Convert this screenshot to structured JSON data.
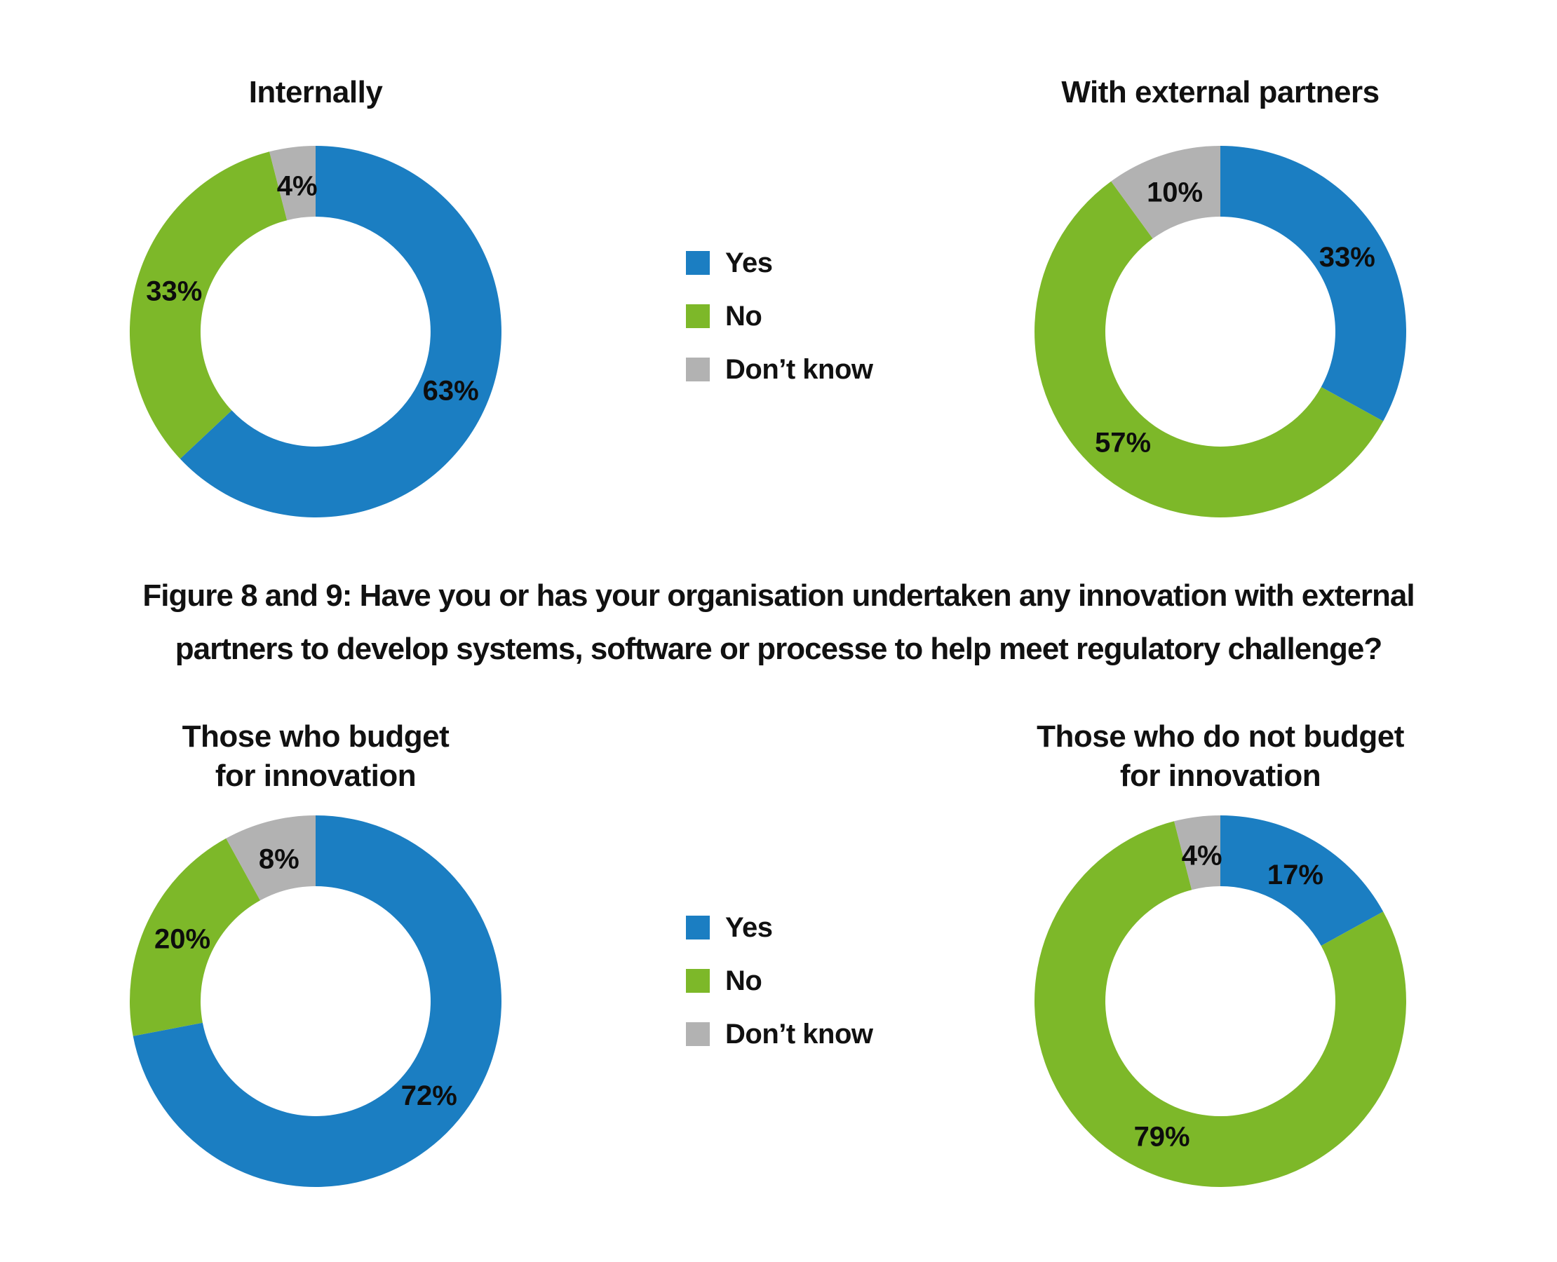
{
  "figure": {
    "caption_lines": [
      "Figure 8 and 9: Have you or has your organisation undertaken any innovation with external",
      "partners to develop systems, software or processe to help meet regulatory challenge?"
    ]
  },
  "legend": {
    "items": [
      {
        "label": "Yes",
        "color": "#1b7ec2"
      },
      {
        "label": "No",
        "color": "#7db829"
      },
      {
        "label": "Don’t know",
        "color": "#b2b2b2"
      }
    ]
  },
  "chart_data": [
    {
      "type": "pie",
      "subtype": "donut",
      "title_lines": [
        "Internally"
      ],
      "categories": [
        "Yes",
        "No",
        "Don’t know"
      ],
      "values": [
        63,
        33,
        4
      ],
      "unit": "%",
      "start_angle": "12-oclock",
      "direction": "clockwise",
      "inner_radius_ratio": 0.62
    },
    {
      "type": "pie",
      "subtype": "donut",
      "title_lines": [
        "With external partners"
      ],
      "categories": [
        "Yes",
        "No",
        "Don’t know"
      ],
      "values": [
        33,
        57,
        10
      ],
      "unit": "%",
      "start_angle": "12-oclock",
      "direction": "clockwise",
      "inner_radius_ratio": 0.62
    },
    {
      "type": "pie",
      "subtype": "donut",
      "title_lines": [
        "Those who budget",
        "for innovation"
      ],
      "categories": [
        "Yes",
        "No",
        "Don’t know"
      ],
      "values": [
        72,
        20,
        8
      ],
      "unit": "%",
      "start_angle": "12-oclock",
      "direction": "clockwise",
      "inner_radius_ratio": 0.62
    },
    {
      "type": "pie",
      "subtype": "donut",
      "title_lines": [
        "Those who do not budget",
        "for innovation"
      ],
      "categories": [
        "Yes",
        "No",
        "Don’t know"
      ],
      "values": [
        17,
        79,
        4
      ],
      "unit": "%",
      "start_angle": "12-oclock",
      "direction": "clockwise",
      "inner_radius_ratio": 0.62
    }
  ]
}
